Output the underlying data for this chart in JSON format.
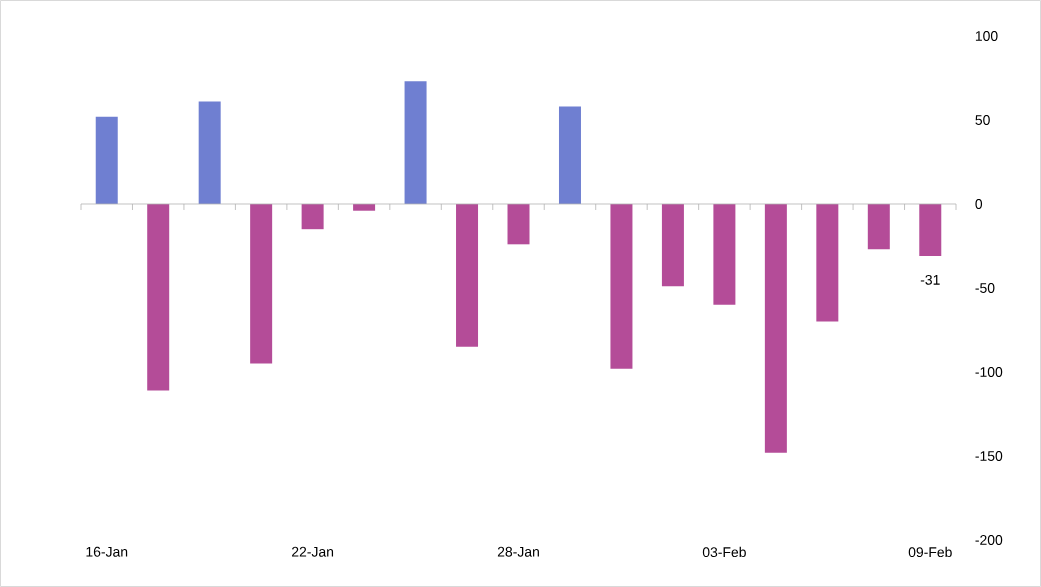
{
  "chart_data": {
    "type": "bar",
    "categories": [
      "16-Jan",
      null,
      null,
      null,
      "22-Jan",
      null,
      null,
      null,
      "28-Jan",
      null,
      null,
      null,
      "03-Feb",
      null,
      null,
      null,
      "09-Feb"
    ],
    "values": [
      52,
      -111,
      61,
      -95,
      -15,
      -4,
      73,
      -85,
      -24,
      58,
      -98,
      -49,
      -60,
      -148,
      -70,
      -27,
      -31
    ],
    "colors": [
      "#6f7fd1",
      "#b44c98",
      "#6f7fd1",
      "#b44c98",
      "#b44c98",
      "#b44c98",
      "#6f7fd1",
      "#b44c98",
      "#b44c98",
      "#6f7fd1",
      "#b44c98",
      "#b44c98",
      "#b44c98",
      "#b44c98",
      "#b44c98",
      "#b44c98",
      "#b44c98"
    ],
    "value_labels": [
      null,
      null,
      null,
      null,
      null,
      null,
      null,
      null,
      null,
      null,
      null,
      null,
      null,
      null,
      null,
      null,
      "-31"
    ],
    "ylim": [
      -200,
      100
    ],
    "yticks": [
      -200,
      -150,
      -100,
      -50,
      0,
      50,
      100
    ]
  }
}
